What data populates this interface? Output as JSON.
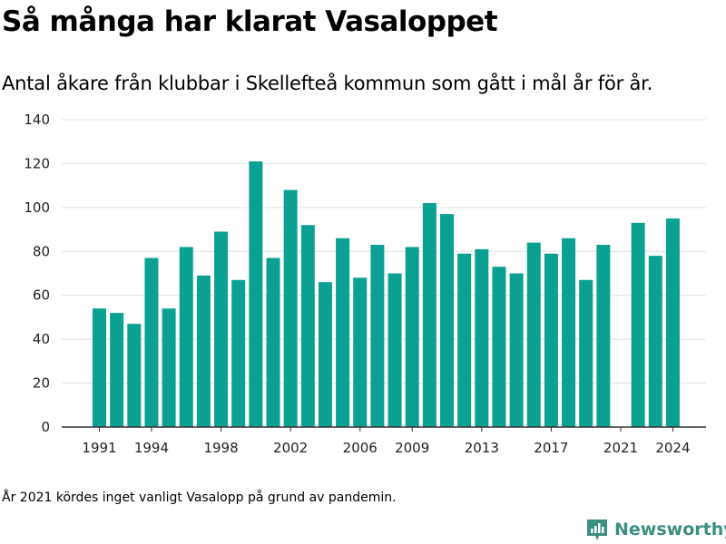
{
  "title": "Så många har klarat Vasaloppet",
  "subtitle": "Antal åkare från klubbar i Skellefteå kommun som gått i mål år för år.",
  "footnote": "År 2021 kördes inget vanligt Vasalopp på grund av pandemin.",
  "brand": {
    "name": "Newsworthy",
    "icon": "newsworthy-logo-icon"
  },
  "colors": {
    "bar": "#0aa193",
    "grid": "#e0e0e0",
    "axis": "#333333",
    "brand": "#3a8f7f"
  },
  "chart_data": {
    "type": "bar",
    "categories": [
      1991,
      1992,
      1993,
      1994,
      1995,
      1996,
      1997,
      1998,
      1999,
      2000,
      2001,
      2002,
      2003,
      2004,
      2005,
      2006,
      2007,
      2008,
      2009,
      2010,
      2011,
      2012,
      2013,
      2014,
      2015,
      2016,
      2017,
      2018,
      2019,
      2020,
      2021,
      2022,
      2023,
      2024
    ],
    "values": [
      54,
      52,
      47,
      77,
      54,
      82,
      69,
      89,
      67,
      121,
      77,
      108,
      92,
      66,
      86,
      68,
      83,
      70,
      82,
      102,
      97,
      79,
      81,
      73,
      70,
      84,
      79,
      86,
      67,
      83,
      null,
      93,
      78,
      95
    ],
    "x_tick_labels": [
      "1991",
      "1994",
      "1998",
      "2002",
      "2006",
      "2009",
      "2013",
      "2017",
      "2021",
      "2024"
    ],
    "y_ticks": [
      0,
      20,
      40,
      60,
      80,
      100,
      120,
      140
    ],
    "ylim": [
      0,
      140
    ],
    "xlabel": "",
    "ylabel": "",
    "grid": true
  }
}
